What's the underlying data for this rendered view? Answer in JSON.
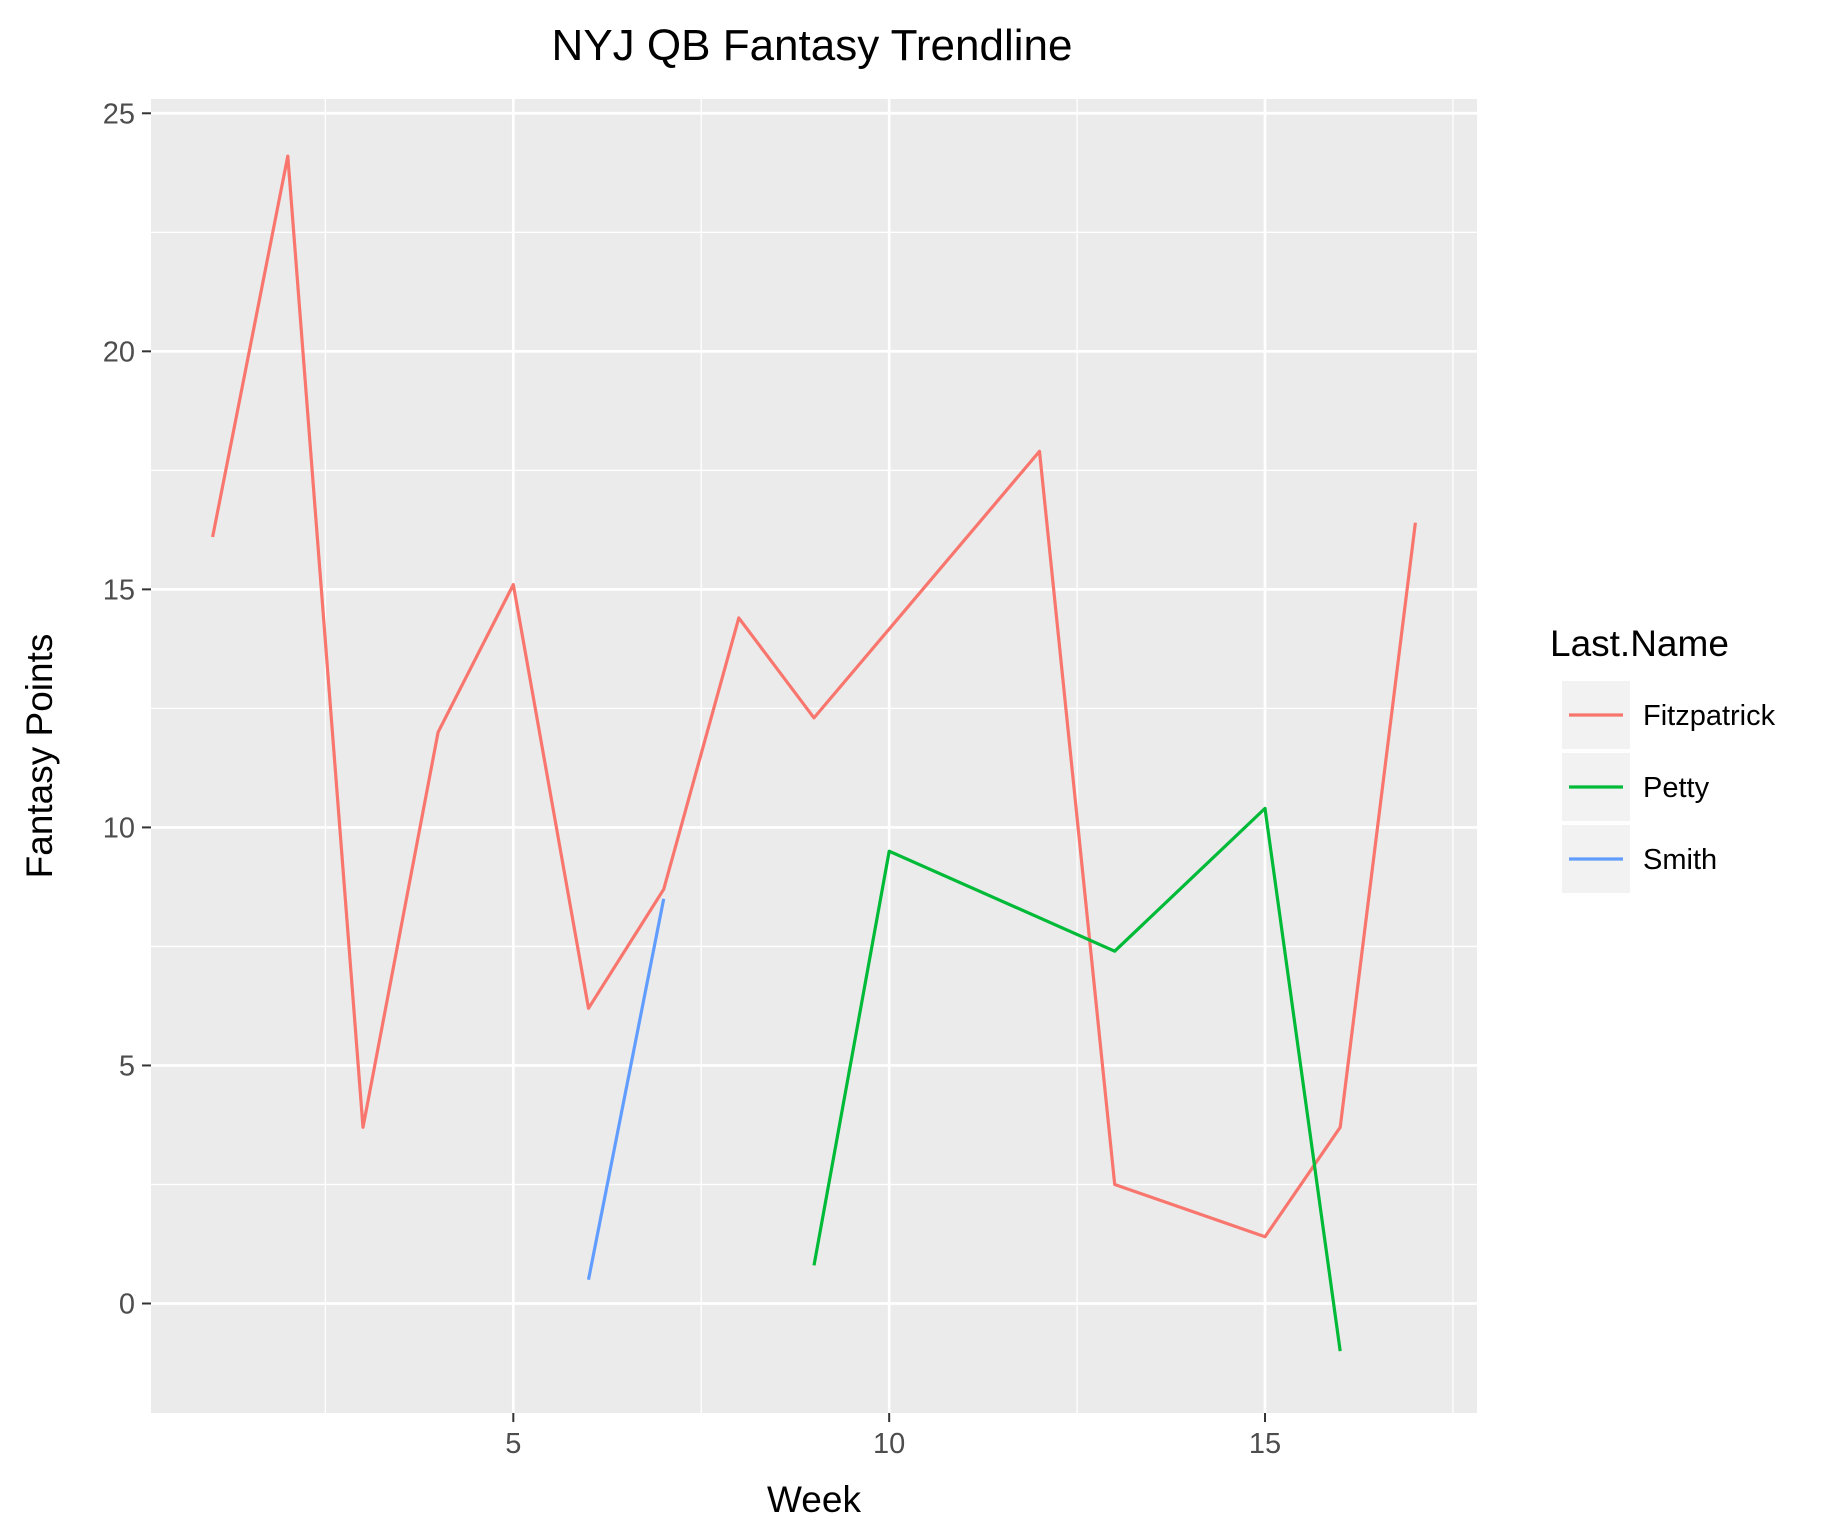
{
  "chart_data": {
    "type": "line",
    "title": "NYJ QB Fantasy Trendline",
    "xlabel": "Week",
    "ylabel": "Fantasy Points",
    "xlim": [
      0.18,
      17.82
    ],
    "ylim": [
      -2.3,
      25.3
    ],
    "x_ticks": [
      5,
      10,
      15
    ],
    "x_minor_ticks": [
      2.5,
      7.5,
      12.5,
      17.5
    ],
    "y_ticks": [
      0,
      5,
      10,
      15,
      20,
      25
    ],
    "y_minor_ticks": [
      2.5,
      7.5,
      12.5,
      17.5,
      22.5
    ],
    "grid": true,
    "legend": {
      "title": "Last.Name",
      "position": "right"
    },
    "series": [
      {
        "name": "Fitzpatrick",
        "color": "#F8766D",
        "x": [
          1,
          2,
          3,
          4,
          5,
          6,
          7,
          8,
          9,
          12,
          13,
          15,
          16,
          17
        ],
        "y": [
          16.1,
          24.1,
          3.7,
          12.0,
          15.1,
          6.2,
          8.7,
          14.4,
          12.3,
          17.9,
          2.5,
          1.4,
          3.7,
          16.4
        ]
      },
      {
        "name": "Petty",
        "color": "#00BA38",
        "x": [
          9,
          10,
          13,
          15,
          16
        ],
        "y": [
          0.8,
          9.5,
          7.4,
          10.4,
          -1.0
        ]
      },
      {
        "name": "Smith",
        "color": "#619CFF",
        "x": [
          6,
          7
        ],
        "y": [
          0.5,
          8.5
        ]
      }
    ]
  }
}
